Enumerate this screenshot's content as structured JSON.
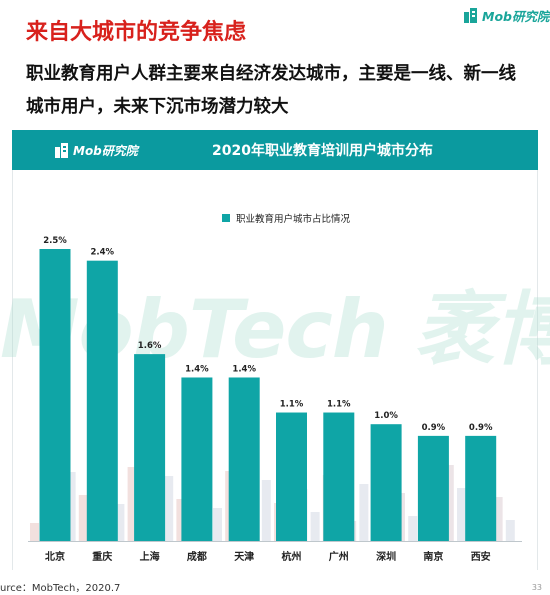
{
  "brand": {
    "logo_text": "Mob研究院",
    "watermark_text": "MobTech 袤博"
  },
  "slide": {
    "title": "来自大城市的竞争焦虑",
    "subtitle": "职业教育用户人群主要来自经济发达城市，主要是一线、新一线城市用户，未来下沉市场潜力较大",
    "source": "urce：MobTech，2020.7",
    "page_number": "33"
  },
  "colors": {
    "accent": "#0fa5a6",
    "header": "#0b9a9f",
    "title_red": "#d8211c"
  },
  "chart_data": {
    "type": "bar",
    "title": "2020年职业教育培训用户城市分布",
    "categories": [
      "北京",
      "重庆",
      "上海",
      "成都",
      "天津",
      "杭州",
      "广州",
      "深圳",
      "南京",
      "西安"
    ],
    "series": [
      {
        "name": "职业教育用户城市占比情况",
        "values": [
          2.5,
          2.4,
          1.6,
          1.4,
          1.4,
          1.1,
          1.1,
          1.0,
          0.9,
          0.9
        ],
        "labels": [
          "2.5%",
          "2.4%",
          "1.6%",
          "1.4%",
          "1.4%",
          "1.1%",
          "1.1%",
          "1.0%",
          "0.9%",
          "0.9%"
        ]
      }
    ],
    "ylim": [
      0,
      2.5
    ],
    "grid": false,
    "legend": "top"
  }
}
